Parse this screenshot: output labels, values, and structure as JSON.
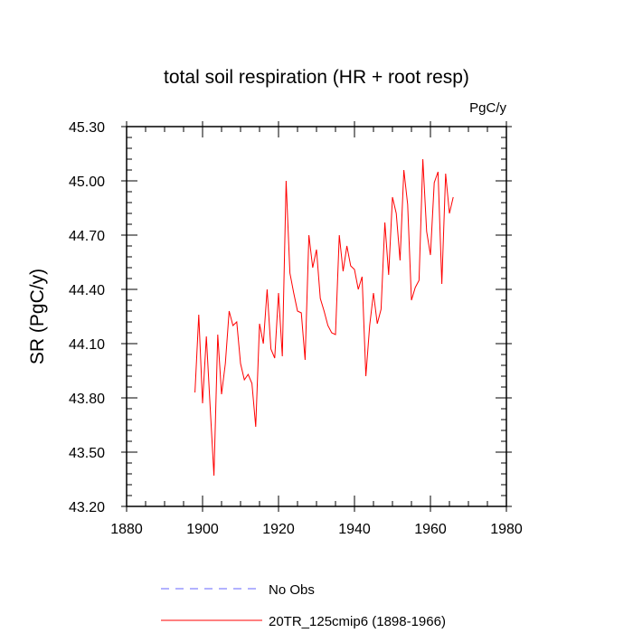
{
  "chart_data": {
    "type": "line",
    "title": "total soil respiration (HR + root resp)",
    "units": "PgC/y",
    "ylabel": "SR  (PgC/y)",
    "xlabel": "",
    "xlim": [
      1880,
      1980
    ],
    "ylim": [
      43.2,
      45.3
    ],
    "xticks": [
      "1880",
      "1900",
      "1920",
      "1940",
      "1960",
      "1980"
    ],
    "yticks": [
      "43.20",
      "43.50",
      "43.80",
      "44.10",
      "44.40",
      "44.70",
      "45.00",
      "45.30"
    ],
    "grid": false,
    "legend_position": "bottom",
    "series": [
      {
        "name": "No Obs",
        "color": "#6666ff",
        "dash": "dashed",
        "x": [],
        "y": []
      },
      {
        "name": "20TR_125cmip6 (1898-1966)",
        "color": "#ff0000",
        "dash": "solid",
        "x": [
          1898,
          1899,
          1900,
          1901,
          1902,
          1903,
          1904,
          1905,
          1906,
          1907,
          1908,
          1909,
          1910,
          1911,
          1912,
          1913,
          1914,
          1915,
          1916,
          1917,
          1918,
          1919,
          1920,
          1921,
          1922,
          1923,
          1924,
          1925,
          1926,
          1927,
          1928,
          1929,
          1930,
          1931,
          1932,
          1933,
          1934,
          1935,
          1936,
          1937,
          1938,
          1939,
          1940,
          1941,
          1942,
          1943,
          1944,
          1945,
          1946,
          1947,
          1948,
          1949,
          1950,
          1951,
          1952,
          1953,
          1954,
          1955,
          1956,
          1957,
          1958,
          1959,
          1960,
          1961,
          1962,
          1963,
          1964,
          1965,
          1966
        ],
        "y": [
          43.83,
          44.26,
          43.77,
          44.14,
          43.75,
          43.37,
          44.15,
          43.82,
          43.99,
          44.28,
          44.2,
          44.22,
          43.99,
          43.9,
          43.93,
          43.88,
          43.64,
          44.21,
          44.1,
          44.4,
          44.07,
          44.02,
          44.38,
          44.03,
          45.0,
          44.49,
          44.38,
          44.28,
          44.27,
          44.01,
          44.7,
          44.52,
          44.62,
          44.35,
          44.28,
          44.2,
          44.16,
          44.15,
          44.7,
          44.5,
          44.64,
          44.53,
          44.51,
          44.4,
          44.47,
          43.92,
          44.2,
          44.38,
          44.21,
          44.29,
          44.77,
          44.48,
          44.91,
          44.82,
          44.56,
          45.06,
          44.87,
          44.34,
          44.41,
          44.45,
          45.12,
          44.72,
          44.59,
          44.99,
          45.05,
          44.43,
          45.04,
          44.82,
          44.91
        ]
      }
    ]
  }
}
